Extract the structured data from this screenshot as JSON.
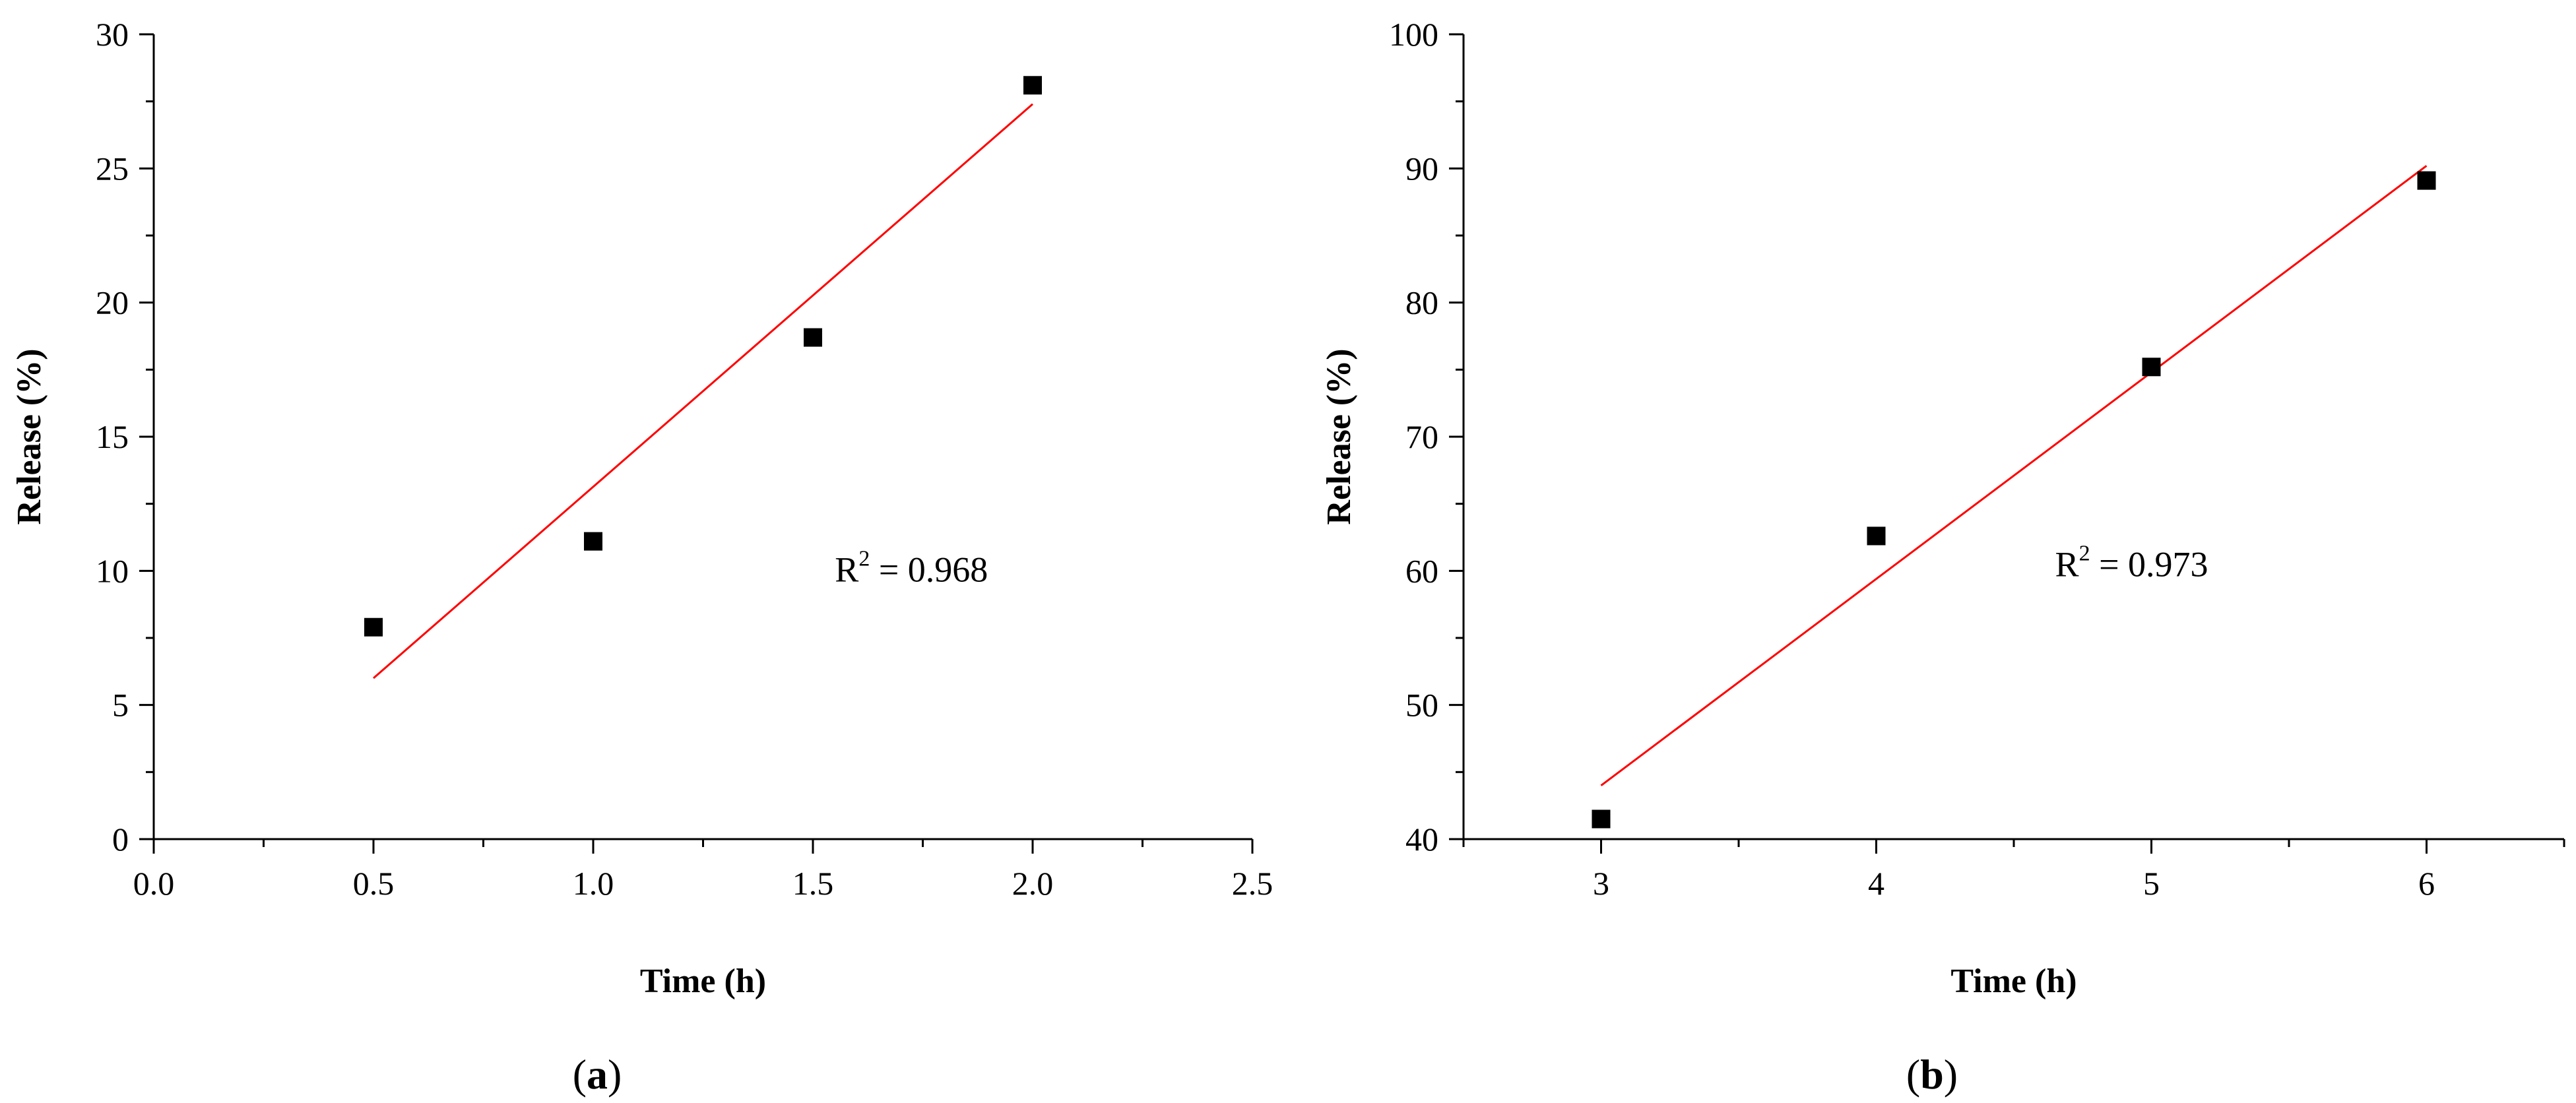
{
  "chart_data": [
    {
      "type": "scatter",
      "panel_label": "a",
      "series": [
        {
          "marker": "square",
          "color": "#000000",
          "x": [
            0.5,
            1.0,
            1.5,
            2.0
          ],
          "y": [
            7.9,
            11.1,
            18.7,
            28.1
          ]
        }
      ],
      "fit_line": {
        "color": "#ff0000",
        "x": [
          0.5,
          2.0
        ],
        "y": [
          6.0,
          27.4
        ]
      },
      "annotation": {
        "base": "R",
        "sup": "2",
        "rest": " = 0.968",
        "anchor": [
          1.55,
          9.6
        ]
      },
      "xlabel": "Time (h)",
      "ylabel": "Release (%)",
      "xlim": [
        0.0,
        2.5
      ],
      "ylim": [
        0,
        30
      ],
      "xticks": [
        0.0,
        0.5,
        1.0,
        1.5,
        2.0,
        2.5
      ],
      "xtick_labels": [
        "0.0",
        "0.5",
        "1.0",
        "1.5",
        "2.0",
        "2.5"
      ],
      "yticks": [
        0,
        5,
        10,
        15,
        20,
        25,
        30
      ],
      "ytick_labels": [
        "0",
        "5",
        "10",
        "15",
        "20",
        "25",
        "30"
      ],
      "xminor": [
        0.25,
        0.75,
        1.25,
        1.75,
        2.25
      ],
      "yminor": [
        2.5,
        7.5,
        12.5,
        17.5,
        22.5,
        27.5
      ],
      "grid": false,
      "legend": false
    },
    {
      "type": "scatter",
      "panel_label": "b",
      "series": [
        {
          "marker": "square",
          "color": "#000000",
          "x": [
            3,
            4,
            5,
            6
          ],
          "y": [
            41.5,
            62.6,
            75.2,
            89.1
          ]
        }
      ],
      "fit_line": {
        "color": "#ff0000",
        "x": [
          3,
          6
        ],
        "y": [
          44.0,
          90.2
        ]
      },
      "annotation": {
        "base": "R",
        "sup": "2",
        "rest": " = 0.973",
        "anchor": [
          4.65,
          59.6
        ]
      },
      "xlabel": "Time (h)",
      "ylabel": "Release (%)",
      "xlim": [
        2.5,
        6.5
      ],
      "ylim": [
        40,
        100
      ],
      "xticks": [
        3,
        4,
        5,
        6
      ],
      "xtick_labels": [
        "3",
        "4",
        "5",
        "6"
      ],
      "yticks": [
        40,
        50,
        60,
        70,
        80,
        90,
        100
      ],
      "ytick_labels": [
        "40",
        "50",
        "60",
        "70",
        "80",
        "90",
        "100"
      ],
      "xminor": [
        2.5,
        3.5,
        4.5,
        5.5,
        6.5
      ],
      "yminor": [
        45,
        55,
        65,
        75,
        85,
        95
      ],
      "grid": false,
      "legend": false
    }
  ]
}
